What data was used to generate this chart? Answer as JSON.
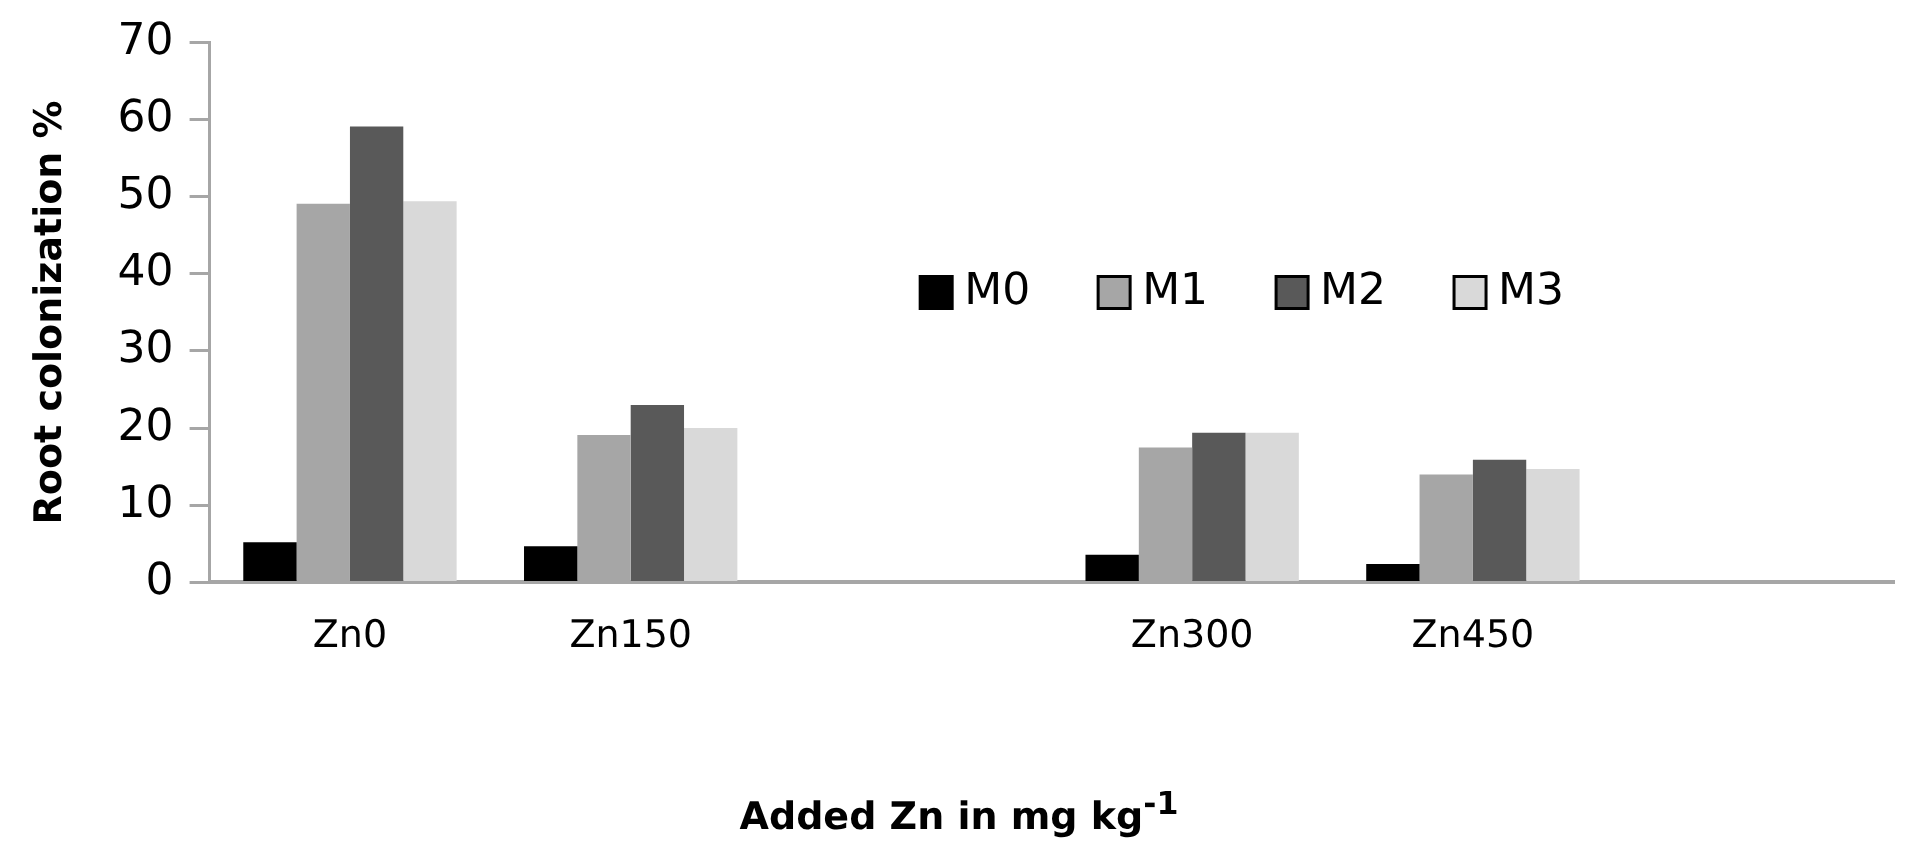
{
  "chart_data": {
    "type": "bar",
    "ylabel": "Root colonization %",
    "xlabel": "Added Zn in mg kg$^{-1}$",
    "categories": [
      "Zn0",
      "Zn150",
      null,
      "Zn300",
      "Zn450",
      null
    ],
    "series": [
      {
        "name": "M0",
        "color": "#000000",
        "values": [
          5.2,
          4.7,
          null,
          3.6,
          2.4,
          null
        ]
      },
      {
        "name": "M1",
        "color": "#a6a6a6",
        "values": [
          49.1,
          19.1,
          null,
          17.5,
          14.0,
          null
        ]
      },
      {
        "name": "M2",
        "color": "#595959",
        "values": [
          59.1,
          23.0,
          null,
          19.4,
          15.9,
          null
        ]
      },
      {
        "name": "M3",
        "color": "#d9d9d9",
        "values": [
          49.4,
          20.0,
          null,
          19.4,
          14.7,
          null
        ]
      }
    ],
    "ylim": [
      0,
      70
    ],
    "yticks": [
      0,
      10,
      20,
      30,
      40,
      50,
      60,
      70
    ],
    "grid": false,
    "legend": "right"
  }
}
